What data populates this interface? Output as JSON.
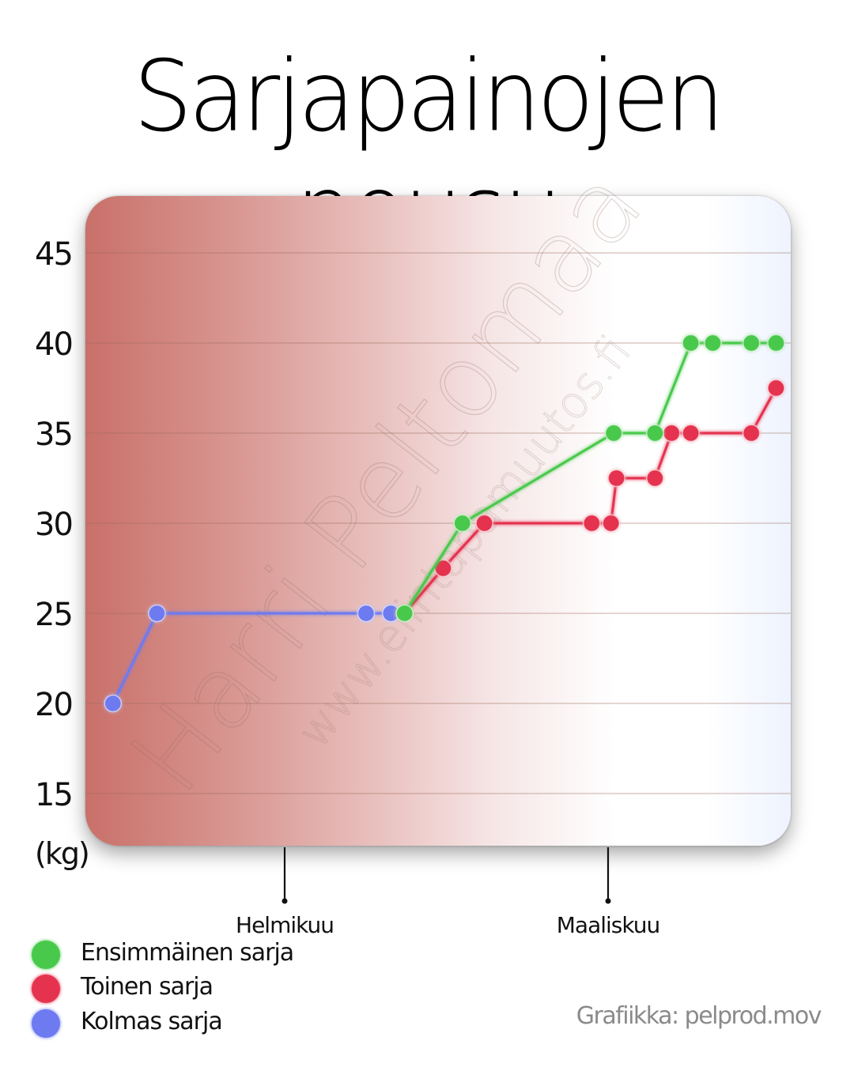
{
  "title": "Sarjapainojen nousu",
  "unit_label": "(kg)",
  "months": [
    {
      "label": "Helmikuu"
    },
    {
      "label": "Maaliskuu"
    }
  ],
  "watermark": {
    "line1": "Harri Peltomaa",
    "line2": "www.elintapamuutos.fi"
  },
  "credit": "Grafiikka: pelprod.mov",
  "colors": {
    "green": "#49c94c",
    "red": "#e5334f",
    "blue": "#6d7af0"
  },
  "chart_data": {
    "type": "line",
    "ylabel": "(kg)",
    "ylim": [
      12,
      47
    ],
    "yticks": [
      15,
      20,
      25,
      30,
      35,
      40,
      45
    ],
    "x_axis_markers": [
      "Helmikuu",
      "Maaliskuu"
    ],
    "grid": true,
    "legend_position": "bottom-left",
    "series": [
      {
        "name": "Ensimmäinen sarja",
        "color": "green",
        "points": [
          [
            11.6,
            25
          ],
          [
            13.7,
            30
          ],
          [
            19.2,
            35
          ],
          [
            20.7,
            35
          ],
          [
            22.0,
            40
          ],
          [
            22.8,
            40
          ],
          [
            24.2,
            40
          ],
          [
            25.1,
            40
          ]
        ]
      },
      {
        "name": "Toinen sarja",
        "color": "red",
        "points": [
          [
            11.6,
            25
          ],
          [
            13.0,
            27.5
          ],
          [
            14.5,
            30
          ],
          [
            18.4,
            30
          ],
          [
            19.1,
            30
          ],
          [
            19.3,
            32.5
          ],
          [
            20.7,
            32.5
          ],
          [
            21.3,
            35
          ],
          [
            22.0,
            35
          ],
          [
            24.2,
            35
          ],
          [
            25.1,
            37.5
          ]
        ]
      },
      {
        "name": "Kolmas sarja",
        "color": "blue",
        "points": [
          [
            1.0,
            20
          ],
          [
            2.6,
            25
          ],
          [
            10.2,
            25
          ],
          [
            11.1,
            25
          ]
        ]
      }
    ]
  }
}
